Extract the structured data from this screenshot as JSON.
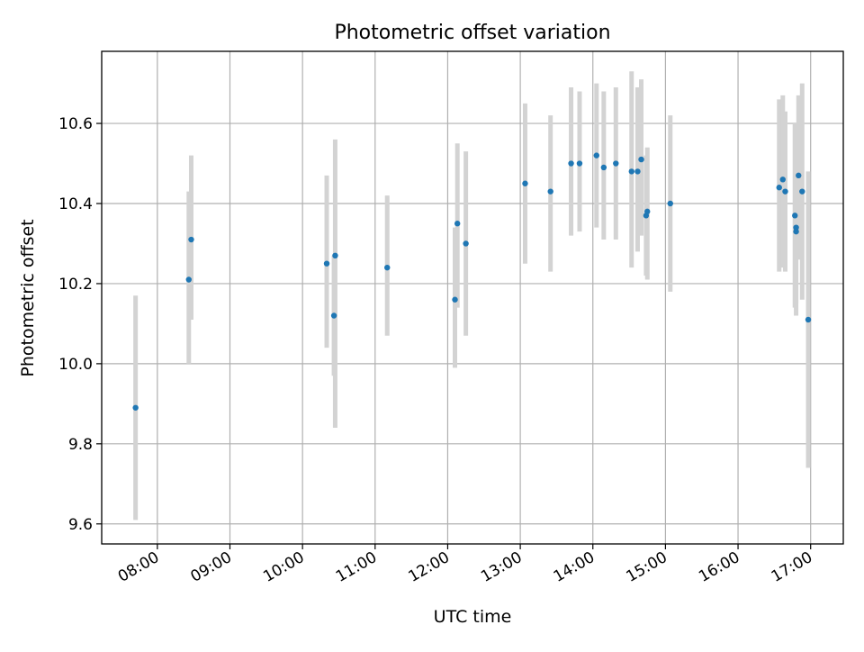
{
  "chart_data": {
    "type": "scatter",
    "title": "Photometric offset variation",
    "xlabel": "UTC time",
    "ylabel": "Photometric offset",
    "xlim": [
      "07:14",
      "17:27"
    ],
    "ylim": [
      9.55,
      10.78
    ],
    "grid": true,
    "xticks": [
      "08:00",
      "09:00",
      "10:00",
      "11:00",
      "12:00",
      "13:00",
      "14:00",
      "15:00",
      "16:00",
      "17:00"
    ],
    "yticks": [
      9.6,
      9.8,
      10.0,
      10.2,
      10.4,
      10.6
    ],
    "marker_color": "#1f77b4",
    "errorbar_color": "#d3d3d3",
    "grid_color": "#b0b0b0",
    "series": [
      {
        "points": [
          {
            "time": "07:42",
            "y": 9.89,
            "ylow": 9.61,
            "yhigh": 10.17
          },
          {
            "time": "08:26",
            "y": 10.21,
            "ylow": 10.0,
            "yhigh": 10.43
          },
          {
            "time": "08:28",
            "y": 10.31,
            "ylow": 10.11,
            "yhigh": 10.52
          },
          {
            "time": "10:20",
            "y": 10.25,
            "ylow": 10.04,
            "yhigh": 10.47
          },
          {
            "time": "10:26",
            "y": 10.12,
            "ylow": 9.97,
            "yhigh": 10.27
          },
          {
            "time": "10:27",
            "y": 10.27,
            "ylow": 9.84,
            "yhigh": 10.56
          },
          {
            "time": "11:10",
            "y": 10.24,
            "ylow": 10.07,
            "yhigh": 10.42
          },
          {
            "time": "12:06",
            "y": 10.16,
            "ylow": 9.99,
            "yhigh": 10.34
          },
          {
            "time": "12:08",
            "y": 10.35,
            "ylow": 10.14,
            "yhigh": 10.55
          },
          {
            "time": "12:15",
            "y": 10.3,
            "ylow": 10.07,
            "yhigh": 10.53
          },
          {
            "time": "13:04",
            "y": 10.45,
            "ylow": 10.25,
            "yhigh": 10.65
          },
          {
            "time": "13:25",
            "y": 10.43,
            "ylow": 10.23,
            "yhigh": 10.62
          },
          {
            "time": "13:42",
            "y": 10.5,
            "ylow": 10.32,
            "yhigh": 10.69
          },
          {
            "time": "13:49",
            "y": 10.5,
            "ylow": 10.33,
            "yhigh": 10.68
          },
          {
            "time": "14:03",
            "y": 10.52,
            "ylow": 10.34,
            "yhigh": 10.7
          },
          {
            "time": "14:09",
            "y": 10.49,
            "ylow": 10.31,
            "yhigh": 10.68
          },
          {
            "time": "14:19",
            "y": 10.5,
            "ylow": 10.31,
            "yhigh": 10.69
          },
          {
            "time": "14:32",
            "y": 10.48,
            "ylow": 10.24,
            "yhigh": 10.73
          },
          {
            "time": "14:37",
            "y": 10.48,
            "ylow": 10.28,
            "yhigh": 10.69
          },
          {
            "time": "14:40",
            "y": 10.51,
            "ylow": 10.32,
            "yhigh": 10.71
          },
          {
            "time": "14:44",
            "y": 10.37,
            "ylow": 10.22,
            "yhigh": 10.52
          },
          {
            "time": "14:45",
            "y": 10.38,
            "ylow": 10.21,
            "yhigh": 10.54
          },
          {
            "time": "15:04",
            "y": 10.4,
            "ylow": 10.18,
            "yhigh": 10.62
          },
          {
            "time": "16:34",
            "y": 10.44,
            "ylow": 10.23,
            "yhigh": 10.66
          },
          {
            "time": "16:37",
            "y": 10.46,
            "ylow": 10.24,
            "yhigh": 10.67
          },
          {
            "time": "16:39",
            "y": 10.43,
            "ylow": 10.23,
            "yhigh": 10.63
          },
          {
            "time": "16:47",
            "y": 10.37,
            "ylow": 10.14,
            "yhigh": 10.6
          },
          {
            "time": "16:48",
            "y": 10.34,
            "ylow": 10.15,
            "yhigh": 10.55
          },
          {
            "time": "16:48",
            "y": 10.33,
            "ylow": 10.12,
            "yhigh": 10.53
          },
          {
            "time": "16:50",
            "y": 10.47,
            "ylow": 10.26,
            "yhigh": 10.67
          },
          {
            "time": "16:53",
            "y": 10.43,
            "ylow": 10.16,
            "yhigh": 10.7
          },
          {
            "time": "16:58",
            "y": 10.11,
            "ylow": 9.74,
            "yhigh": 10.48
          }
        ]
      }
    ]
  }
}
